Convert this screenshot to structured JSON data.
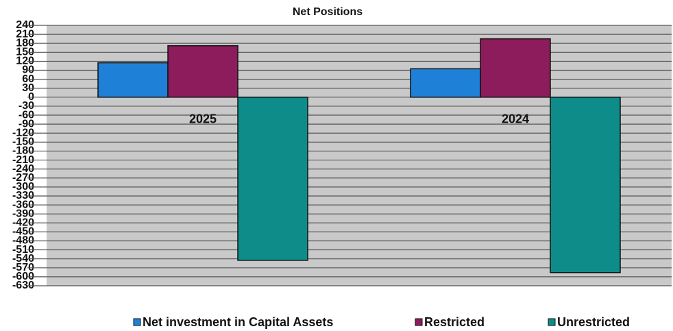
{
  "chart_data": {
    "type": "bar",
    "title": "Net Positions",
    "categories": [
      "2025",
      "2024"
    ],
    "series": [
      {
        "name": "Net investment in Capital Assets",
        "color": "#1f80d8",
        "values": [
          115,
          95
        ]
      },
      {
        "name": "Restricted",
        "color": "#8c1c5c",
        "values": [
          172,
          195
        ]
      },
      {
        "name": "Unrestricted",
        "color": "#0e8c89",
        "values": [
          -545,
          -586
        ]
      }
    ],
    "ylim": [
      -630,
      240
    ],
    "yticks": [
      240,
      210,
      180,
      150,
      120,
      90,
      60,
      30,
      0,
      -30,
      -60,
      -90,
      -120,
      -150,
      -180,
      -210,
      -240,
      -270,
      -300,
      -330,
      -360,
      -390,
      -420,
      -450,
      -480,
      -510,
      -540,
      -570,
      -600,
      -630
    ],
    "grid": true,
    "legend": "bottom"
  }
}
